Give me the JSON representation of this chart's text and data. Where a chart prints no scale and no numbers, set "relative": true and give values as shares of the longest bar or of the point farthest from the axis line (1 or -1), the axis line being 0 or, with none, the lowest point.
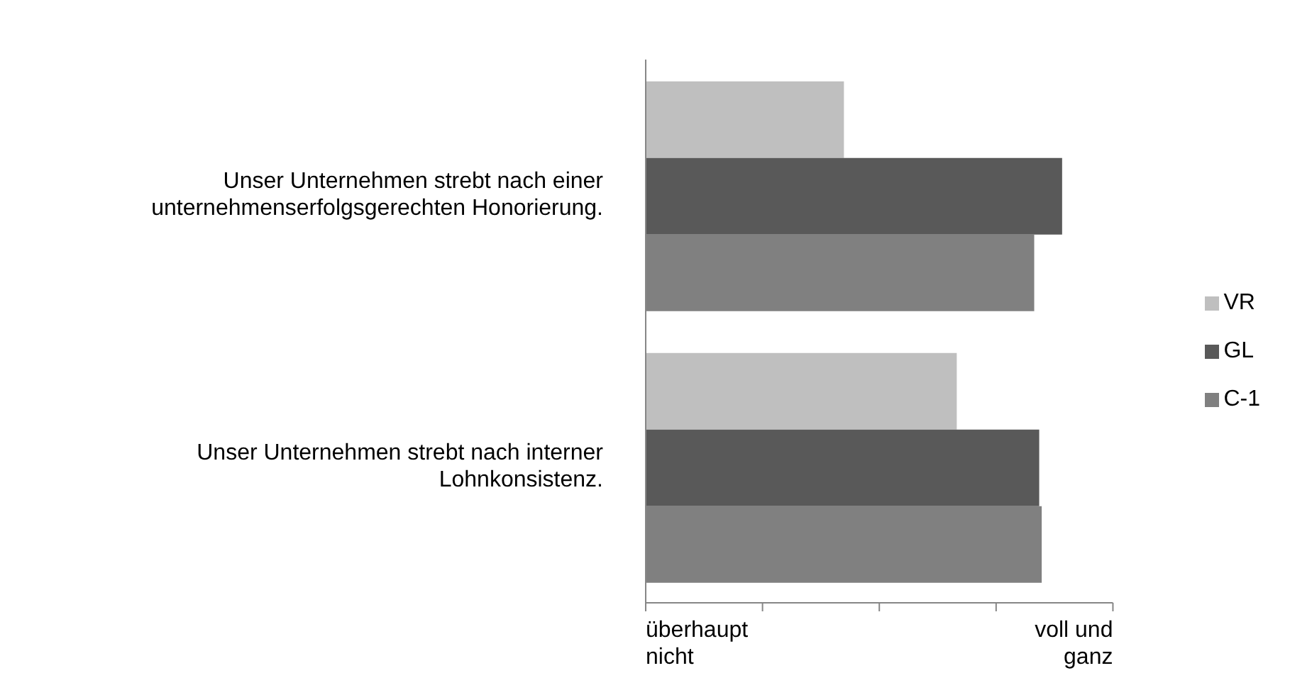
{
  "chart_data": {
    "type": "bar",
    "orientation": "horizontal",
    "relative": true,
    "categories": [
      "Unser Unternehmen strebt nach einer unternehmenserfolgsgerechten Honorierung.",
      "Unser Unternehmen strebt nach interner Lohnkonsistenz."
    ],
    "series": [
      {
        "name": "VR",
        "color": "#bfbfbf",
        "values": [
          0.476,
          0.747
        ]
      },
      {
        "name": "GL",
        "color": "#595959",
        "values": [
          1,
          0.945
        ]
      },
      {
        "name": "C-1",
        "color": "#808080",
        "values": [
          0.933,
          0.951
        ]
      }
    ],
    "annotations": [
      "überhaupt nicht",
      "voll und ganz"
    ],
    "grid": false,
    "legend": "right"
  }
}
